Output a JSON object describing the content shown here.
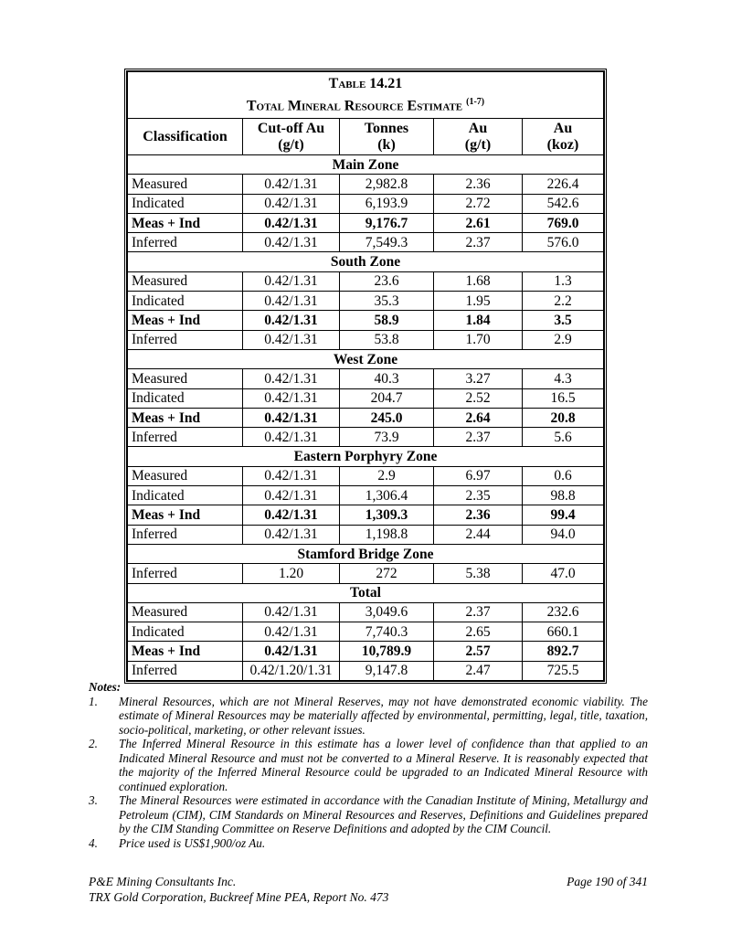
{
  "table": {
    "title_line1": "Table 14.21",
    "title_line2": "Total Mineral Resource Estimate",
    "title_sup": "(1-7)",
    "headers": [
      {
        "line1": "Classification",
        "line2": ""
      },
      {
        "line1": "Cut-off Au",
        "line2": "(g/t)"
      },
      {
        "line1": "Tonnes",
        "line2": "(k)"
      },
      {
        "line1": "Au",
        "line2": "(g/t)"
      },
      {
        "line1": "Au",
        "line2": "(koz)"
      }
    ],
    "zones": [
      {
        "name": "Main Zone",
        "rows": [
          {
            "cells": [
              "Measured",
              "0.42/1.31",
              "2,982.8",
              "2.36",
              "226.4"
            ],
            "bold": false
          },
          {
            "cells": [
              "Indicated",
              "0.42/1.31",
              "6,193.9",
              "2.72",
              "542.6"
            ],
            "bold": false
          },
          {
            "cells": [
              "Meas + Ind",
              "0.42/1.31",
              "9,176.7",
              "2.61",
              "769.0"
            ],
            "bold": true
          },
          {
            "cells": [
              "Inferred",
              "0.42/1.31",
              "7,549.3",
              "2.37",
              "576.0"
            ],
            "bold": false
          }
        ]
      },
      {
        "name": "South Zone",
        "rows": [
          {
            "cells": [
              "Measured",
              "0.42/1.31",
              "23.6",
              "1.68",
              "1.3"
            ],
            "bold": false
          },
          {
            "cells": [
              "Indicated",
              "0.42/1.31",
              "35.3",
              "1.95",
              "2.2"
            ],
            "bold": false
          },
          {
            "cells": [
              "Meas + Ind",
              "0.42/1.31",
              "58.9",
              "1.84",
              "3.5"
            ],
            "bold": true
          },
          {
            "cells": [
              "Inferred",
              "0.42/1.31",
              "53.8",
              "1.70",
              "2.9"
            ],
            "bold": false
          }
        ]
      },
      {
        "name": "West Zone",
        "rows": [
          {
            "cells": [
              "Measured",
              "0.42/1.31",
              "40.3",
              "3.27",
              "4.3"
            ],
            "bold": false
          },
          {
            "cells": [
              "Indicated",
              "0.42/1.31",
              "204.7",
              "2.52",
              "16.5"
            ],
            "bold": false
          },
          {
            "cells": [
              "Meas + Ind",
              "0.42/1.31",
              "245.0",
              "2.64",
              "20.8"
            ],
            "bold": true
          },
          {
            "cells": [
              "Inferred",
              "0.42/1.31",
              "73.9",
              "2.37",
              "5.6"
            ],
            "bold": false
          }
        ]
      },
      {
        "name": "Eastern Porphyry Zone",
        "rows": [
          {
            "cells": [
              "Measured",
              "0.42/1.31",
              "2.9",
              "6.97",
              "0.6"
            ],
            "bold": false
          },
          {
            "cells": [
              "Indicated",
              "0.42/1.31",
              "1,306.4",
              "2.35",
              "98.8"
            ],
            "bold": false
          },
          {
            "cells": [
              "Meas + Ind",
              "0.42/1.31",
              "1,309.3",
              "2.36",
              "99.4"
            ],
            "bold": true
          },
          {
            "cells": [
              "Inferred",
              "0.42/1.31",
              "1,198.8",
              "2.44",
              "94.0"
            ],
            "bold": false
          }
        ]
      },
      {
        "name": "Stamford Bridge Zone",
        "rows": [
          {
            "cells": [
              "Inferred",
              "1.20",
              "272",
              "5.38",
              "47.0"
            ],
            "bold": false
          }
        ]
      },
      {
        "name": "Total",
        "rows": [
          {
            "cells": [
              "Measured",
              "0.42/1.31",
              "3,049.6",
              "2.37",
              "232.6"
            ],
            "bold": false
          },
          {
            "cells": [
              "Indicated",
              "0.42/1.31",
              "7,740.3",
              "2.65",
              "660.1"
            ],
            "bold": false
          },
          {
            "cells": [
              "Meas + Ind",
              "0.42/1.31",
              "10,789.9",
              "2.57",
              "892.7"
            ],
            "bold": true
          },
          {
            "cells": [
              "Inferred",
              "0.42/1.20/1.31",
              "9,147.8",
              "2.47",
              "725.5"
            ],
            "bold": false
          }
        ]
      }
    ]
  },
  "notes": {
    "heading": "Notes:",
    "items": [
      {
        "num": "1.",
        "text": "Mineral Resources, which are not Mineral Reserves, may not have demonstrated economic viability. The estimate of Mineral Resources may be materially affected by environmental, permitting, legal, title, taxation, socio-political, marketing, or other relevant issues."
      },
      {
        "num": "2.",
        "text": "The Inferred Mineral Resource in this estimate has a lower level of confidence than that applied to an Indicated Mineral Resource and must not be converted to a Mineral Reserve. It is reasonably expected that the majority of the Inferred Mineral Resource could be upgraded to an Indicated Mineral Resource with continued exploration."
      },
      {
        "num": "3.",
        "text": "The Mineral Resources were estimated in accordance with the Canadian Institute of Mining, Metallurgy and Petroleum (CIM), CIM Standards on Mineral Resources and Reserves, Definitions and Guidelines prepared by the CIM Standing Committee on Reserve Definitions and adopted by the CIM Council."
      },
      {
        "num": "4.",
        "text": "Price used is US$1,900/oz Au."
      }
    ]
  },
  "footer": {
    "company": "P&E Mining Consultants Inc.",
    "report": "TRX Gold Corporation, Buckreef Mine PEA, Report No. 473",
    "page": "Page 190 of 341"
  }
}
